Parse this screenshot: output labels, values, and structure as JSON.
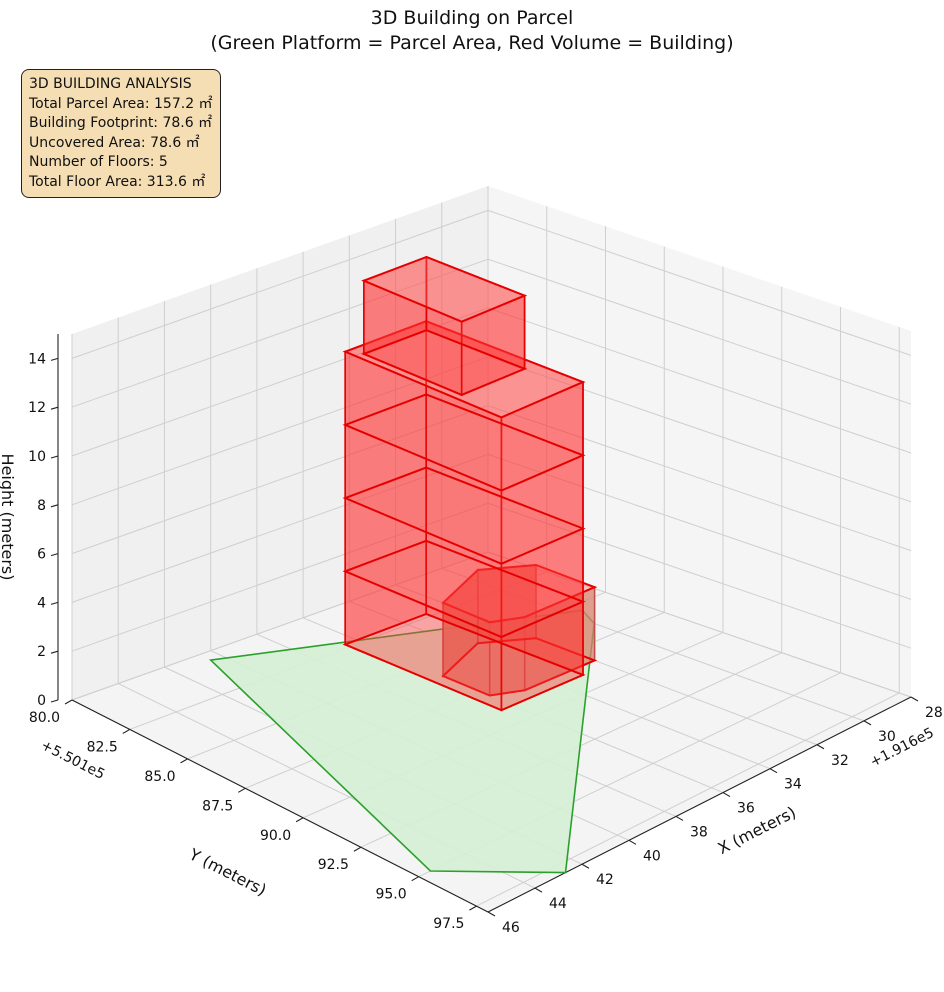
{
  "chart_data": {
    "type": "3d-polygons",
    "title": "3D Building on Parcel",
    "subtitle": "(Green Platform = Parcel Area, Red Volume = Building)",
    "axes": {
      "x": {
        "label": "X (meters)",
        "offset_text": "+1.916e5",
        "ticks": [
          "28",
          "30",
          "32",
          "34",
          "36",
          "38",
          "40",
          "42",
          "44",
          "46"
        ],
        "range": [
          28,
          46
        ]
      },
      "y": {
        "label": "Y (meters)",
        "offset_text": "+5.501e5",
        "ticks": [
          "80.0",
          "82.5",
          "85.0",
          "87.5",
          "90.0",
          "92.5",
          "95.0",
          "97.5"
        ],
        "range": [
          80,
          98
        ]
      },
      "z": {
        "label": "Height (meters)",
        "ticks": [
          "0",
          "2",
          "4",
          "6",
          "8",
          "10",
          "12",
          "14"
        ],
        "range": [
          0,
          15
        ]
      }
    },
    "grid": true,
    "parcel": {
      "name": "Parcel Area",
      "color": "#2ca02c",
      "fill": "#d4f0d4",
      "outline": [
        [
          29.5,
          85.5
        ],
        [
          30.0,
          86.5
        ],
        [
          42.7,
          98.0
        ],
        [
          45.5,
          95.0
        ],
        [
          40.5,
          80.5
        ]
      ]
    },
    "building": {
      "name": "Building",
      "color": "#ff0000",
      "floor_height": 3.0,
      "floors": 5,
      "levels": [
        {
          "from": 0,
          "to": 3,
          "footprint": [
            [
              32.0,
              88.5
            ],
            [
              35.0,
              88.5
            ],
            [
              36.0,
              88.0
            ],
            [
              36.0,
              86.0
            ],
            [
              33.5,
              85.0
            ],
            [
              32.0,
              86.0
            ]
          ]
        },
        {
          "from": 0,
          "to": 12,
          "footprint": [
            [
              33.0,
              82.3
            ],
            [
              36.5,
              82.3
            ],
            [
              36.5,
              89.0
            ],
            [
              33.0,
              89.0
            ],
            [
              33.0,
              82.3
            ]
          ]
        },
        {
          "from": 12,
          "to": 15,
          "footprint": [
            [
              33.5,
              82.8
            ],
            [
              36.2,
              82.8
            ],
            [
              36.2,
              87.0
            ],
            [
              33.5,
              87.0
            ],
            [
              33.5,
              82.8
            ]
          ]
        }
      ]
    }
  },
  "info_box": {
    "lines": [
      "3D BUILDING ANALYSIS",
      "Total Parcel Area: 157.2 ㎡",
      "Building Footprint: 78.6 ㎡",
      "Uncovered Area: 78.6 ㎡",
      "Number of Floors: 5",
      "Total Floor Area: 313.6 ㎡"
    ]
  }
}
